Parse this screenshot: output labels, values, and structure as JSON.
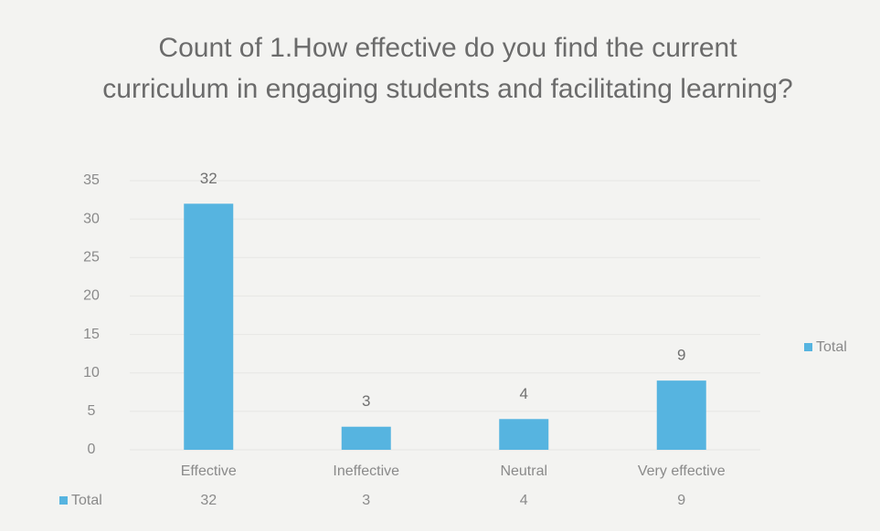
{
  "chart_data": {
    "type": "bar",
    "title": "Count of 1.How effective do you find the current curriculum in engaging students and facilitating learning?",
    "categories": [
      "Effective",
      "Ineffective",
      "Neutral",
      "Very effective"
    ],
    "series": [
      {
        "name": "Total",
        "color": "#56b4e0",
        "values": [
          32,
          3,
          4,
          9
        ]
      }
    ],
    "ylim": [
      0,
      35
    ],
    "yticks": [
      0,
      5,
      10,
      15,
      20,
      25,
      30,
      35
    ],
    "grid": true,
    "legend": "right",
    "data_table": true
  }
}
